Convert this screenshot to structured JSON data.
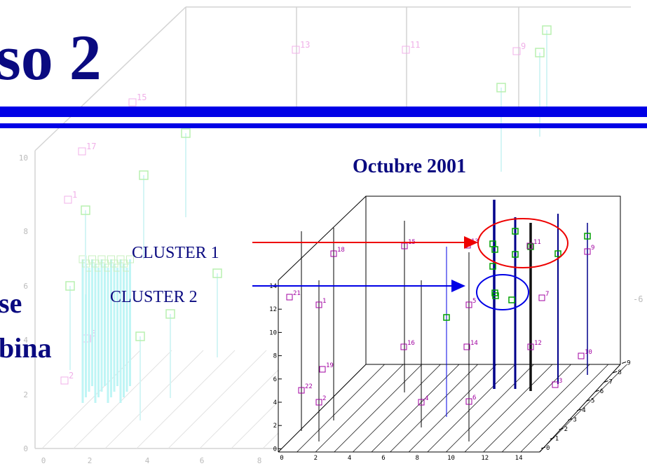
{
  "title": "so 2",
  "subtitle": "Octubre 2001",
  "annotations": [
    "CLUSTER 1",
    "CLUSTER 2"
  ],
  "body_text": [
    "se",
    "bina"
  ],
  "background_plot": {
    "yticks": [
      10,
      8,
      6,
      4,
      2,
      0
    ],
    "xticks": [
      0,
      2,
      4,
      6,
      8
    ],
    "point_labels": [
      13,
      11,
      9,
      15,
      17,
      1,
      3,
      2
    ],
    "side_tick": -6
  },
  "plot": {
    "yticks": [
      14,
      12,
      10,
      8,
      6,
      4,
      2,
      0
    ],
    "xticks": [
      0,
      2,
      4,
      6,
      8,
      10,
      12,
      14
    ],
    "zticks": [
      0,
      1,
      2,
      3,
      4,
      5,
      6,
      7,
      8,
      9
    ],
    "point_labels": [
      21,
      1,
      18,
      15,
      13,
      5,
      11,
      9,
      7,
      16,
      14,
      12,
      10,
      19,
      22,
      2,
      4,
      6,
      3
    ]
  }
}
